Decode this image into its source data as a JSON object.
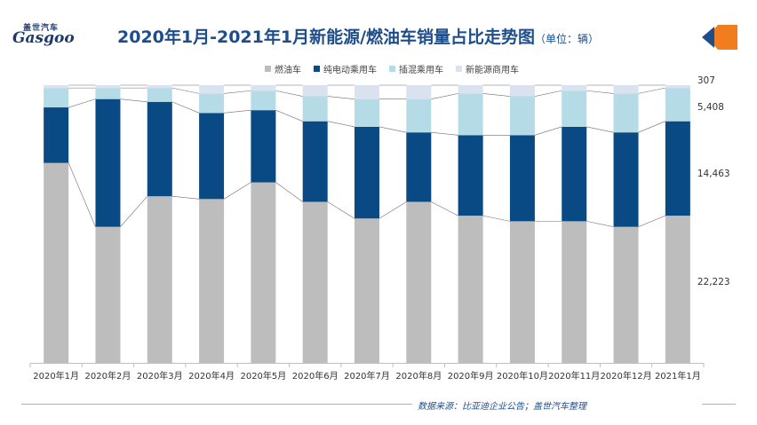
{
  "header": {
    "logo_cn": "盖世汽车",
    "logo_en": "Gasgoo",
    "title": "2020年1月-2021年1月新能源/燃油车销量占比走势图",
    "unit": "（单位：辆）"
  },
  "footer": {
    "source": "数据来源：比亚迪企业公告；盖世汽车整理"
  },
  "colors": {
    "fuel": "#bdbdbd",
    "ev": "#0a4a84",
    "phev": "#b5dbe7",
    "commercial": "#d9e2ee",
    "title": "#1e4d8c",
    "deco_orange": "#f07d1e",
    "deco_blue": "#1e4d8c"
  },
  "chart_data": {
    "type": "bar",
    "stacked": true,
    "normalized": true,
    "categories": [
      "2020年1月",
      "2020年2月",
      "2020年3月",
      "2020年4月",
      "2020年5月",
      "2020年6月",
      "2020年7月",
      "2020年8月",
      "2020年9月",
      "2020年10月",
      "2020年11月",
      "2020年12月",
      "2021年1月"
    ],
    "series": [
      {
        "name": "燃油车",
        "key": "fuel",
        "values": [
          72,
          49,
          60,
          59,
          65,
          58,
          52,
          58,
          53,
          51,
          51,
          49,
          53
        ]
      },
      {
        "name": "纯电动乘用车",
        "key": "ev",
        "values": [
          20,
          46,
          34,
          31,
          26,
          29,
          33,
          25,
          29,
          31,
          34,
          34,
          34
        ]
      },
      {
        "name": "插混乘用车",
        "key": "phev",
        "values": [
          7,
          4,
          5,
          7,
          7,
          9,
          10,
          12,
          15,
          14,
          13,
          14,
          12
        ]
      },
      {
        "name": "新能源商用车",
        "key": "commercial",
        "values": [
          1,
          1,
          1,
          3,
          2,
          4,
          5,
          5,
          3,
          4,
          2,
          3,
          1
        ]
      }
    ],
    "labels_last": [
      "307",
      "5,408",
      "14,463",
      "22,223"
    ],
    "ylim": [
      0,
      100
    ]
  }
}
